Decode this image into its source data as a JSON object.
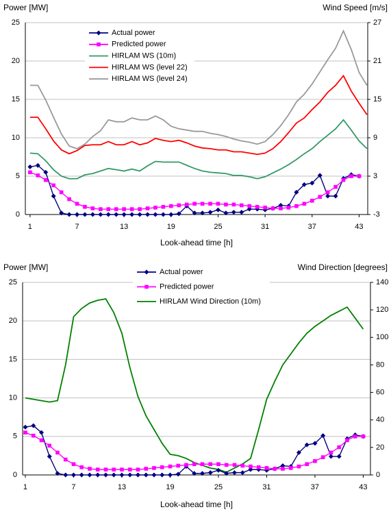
{
  "chart_data": [
    {
      "type": "line",
      "y_label": "Power [MW]",
      "y2_label": "Wind Speed [m/s]",
      "x_label": "Look-ahead time [h]",
      "x": [
        1,
        2,
        3,
        4,
        5,
        6,
        7,
        8,
        9,
        10,
        11,
        12,
        13,
        14,
        15,
        16,
        17,
        18,
        19,
        20,
        21,
        22,
        23,
        24,
        25,
        26,
        27,
        28,
        29,
        30,
        31,
        32,
        33,
        34,
        35,
        36,
        37,
        38,
        39,
        40,
        41,
        42,
        43,
        44
      ],
      "xlim": [
        0.4,
        44.1
      ],
      "xticks": [
        1,
        7,
        13,
        19,
        25,
        31,
        37,
        43
      ],
      "ylim": [
        0,
        25
      ],
      "yticks": [
        0,
        5,
        10,
        15,
        20,
        25
      ],
      "y2lim": [
        -3,
        27
      ],
      "y2ticks": [
        -3,
        3,
        9,
        15,
        21,
        27
      ],
      "grid": true,
      "series": [
        {
          "name": "Actual power",
          "color": "#000080",
          "marker": "diamond",
          "values": [
            6.2,
            6.4,
            5.5,
            2.4,
            0.2,
            0,
            0,
            0,
            0,
            0,
            0,
            0,
            0,
            0,
            0,
            0,
            0,
            0,
            0,
            0.1,
            1.1,
            0.2,
            0.2,
            0.3,
            0.6,
            0.2,
            0.3,
            0.3,
            0.7,
            0.7,
            0.6,
            0.8,
            1.2,
            1.1,
            2.9,
            3.9,
            4.1,
            5.1,
            2.4,
            2.4,
            4.7,
            5.2,
            5.0,
            null
          ]
        },
        {
          "name": "Predicted power",
          "color": "#ff00ff",
          "marker": "square",
          "values": [
            5.5,
            5.1,
            4.5,
            3.8,
            2.9,
            2.0,
            1.4,
            1.0,
            0.8,
            0.7,
            0.7,
            0.7,
            0.7,
            0.7,
            0.7,
            0.8,
            0.9,
            1.0,
            1.1,
            1.2,
            1.3,
            1.4,
            1.4,
            1.4,
            1.4,
            1.3,
            1.3,
            1.2,
            1.1,
            1.0,
            0.9,
            0.8,
            0.8,
            0.9,
            1.1,
            1.4,
            1.8,
            2.3,
            2.9,
            3.6,
            4.5,
            5.0,
            5.0,
            null
          ]
        },
        {
          "name": "HIRLAM WS (10m)",
          "color": "#339966",
          "marker": "none",
          "axis": "y2",
          "values": [
            6.6,
            6.5,
            5.4,
            4.0,
            3.0,
            2.6,
            2.6,
            3.2,
            3.4,
            3.8,
            4.2,
            4.0,
            3.8,
            4.1,
            3.8,
            4.6,
            5.3,
            5.2,
            5.2,
            5.2,
            4.7,
            4.2,
            3.8,
            3.6,
            3.5,
            3.4,
            3.1,
            3.1,
            2.9,
            2.6,
            2.9,
            3.5,
            4.1,
            4.8,
            5.6,
            6.5,
            7.3,
            8.4,
            9.4,
            10.4,
            11.8,
            10.2,
            8.5,
            7.3
          ]
        },
        {
          "name": "HIRLAM WS (level 22)",
          "color": "#ff0000",
          "marker": "none",
          "axis": "y2",
          "values": [
            12.2,
            12.2,
            10.4,
            8.5,
            7.1,
            6.5,
            7.0,
            7.8,
            7.9,
            7.9,
            8.4,
            7.9,
            7.9,
            8.4,
            7.9,
            8.2,
            8.9,
            8.6,
            8.4,
            8.6,
            8.2,
            7.7,
            7.4,
            7.3,
            7.1,
            7.1,
            6.8,
            6.8,
            6.6,
            6.4,
            6.6,
            7.3,
            8.4,
            9.8,
            11.3,
            12.1,
            13.4,
            14.6,
            16.1,
            17.2,
            18.7,
            16.3,
            14.4,
            12.6
          ]
        },
        {
          "name": "HIRLAM WS (level 24)",
          "color": "#999999",
          "marker": "none",
          "axis": "y2",
          "values": [
            17.2,
            17.2,
            14.9,
            12.2,
            9.6,
            7.7,
            7.3,
            8.0,
            9.2,
            10.1,
            11.8,
            11.5,
            11.5,
            12.1,
            11.8,
            11.8,
            12.4,
            11.8,
            10.8,
            10.4,
            10.2,
            10.0,
            10.0,
            9.7,
            9.5,
            9.2,
            8.8,
            8.5,
            8.3,
            8.0,
            8.4,
            9.5,
            10.9,
            12.6,
            14.6,
            15.8,
            17.4,
            19.3,
            21.2,
            23.0,
            25.7,
            22.8,
            19.2,
            17.2
          ]
        }
      ]
    },
    {
      "type": "line",
      "y_label": "Power [MW]",
      "y2_label": "Wind Direction [degrees]",
      "x_label": "Look-ahead time [h]",
      "x": [
        1,
        2,
        3,
        4,
        5,
        6,
        7,
        8,
        9,
        10,
        11,
        12,
        13,
        14,
        15,
        16,
        17,
        18,
        19,
        20,
        21,
        22,
        23,
        24,
        25,
        26,
        27,
        28,
        29,
        30,
        31,
        32,
        33,
        34,
        35,
        36,
        37,
        38,
        39,
        40,
        41,
        42,
        43
      ],
      "xlim": [
        0.66,
        43.9
      ],
      "xticks": [
        1,
        7,
        13,
        19,
        25,
        31,
        37,
        43
      ],
      "ylim": [
        0,
        25
      ],
      "yticks": [
        0,
        5,
        10,
        15,
        20,
        25
      ],
      "y2lim": [
        0,
        140
      ],
      "y2ticks": [
        0,
        20,
        40,
        60,
        80,
        100,
        120,
        140
      ],
      "grid": true,
      "series": [
        {
          "name": "Actual power",
          "color": "#000080",
          "marker": "diamond",
          "values": [
            6.2,
            6.4,
            5.5,
            2.4,
            0.2,
            0,
            0,
            0,
            0,
            0,
            0,
            0,
            0,
            0,
            0,
            0,
            0,
            0,
            0,
            0.1,
            1.1,
            0.2,
            0.2,
            0.3,
            0.6,
            0.2,
            0.3,
            0.3,
            0.7,
            0.7,
            0.6,
            0.8,
            1.2,
            1.1,
            2.9,
            3.9,
            4.1,
            5.1,
            2.4,
            2.4,
            4.7,
            5.2,
            5.0
          ]
        },
        {
          "name": "Predicted power",
          "color": "#ff00ff",
          "marker": "square",
          "values": [
            5.5,
            5.1,
            4.5,
            3.8,
            2.9,
            2.0,
            1.4,
            1.0,
            0.8,
            0.7,
            0.7,
            0.7,
            0.7,
            0.7,
            0.7,
            0.8,
            0.9,
            1.0,
            1.1,
            1.2,
            1.3,
            1.4,
            1.4,
            1.4,
            1.4,
            1.3,
            1.3,
            1.2,
            1.1,
            1.0,
            0.9,
            0.8,
            0.8,
            0.9,
            1.1,
            1.4,
            1.8,
            2.3,
            2.9,
            3.6,
            4.5,
            5.0,
            5.0
          ]
        },
        {
          "name": "HIRLAM Wind Direction (10m)",
          "color": "#008000",
          "marker": "none",
          "axis": "y2",
          "values": [
            56,
            55,
            54,
            53,
            54,
            80,
            115,
            121,
            125,
            127,
            128,
            118,
            103,
            78,
            57,
            43,
            33,
            23,
            15,
            14,
            12,
            9,
            7,
            5,
            4,
            2,
            5,
            8,
            12,
            33,
            55,
            68,
            80,
            88,
            96,
            103,
            108,
            112,
            116,
            119,
            122,
            114,
            106
          ]
        }
      ]
    }
  ]
}
